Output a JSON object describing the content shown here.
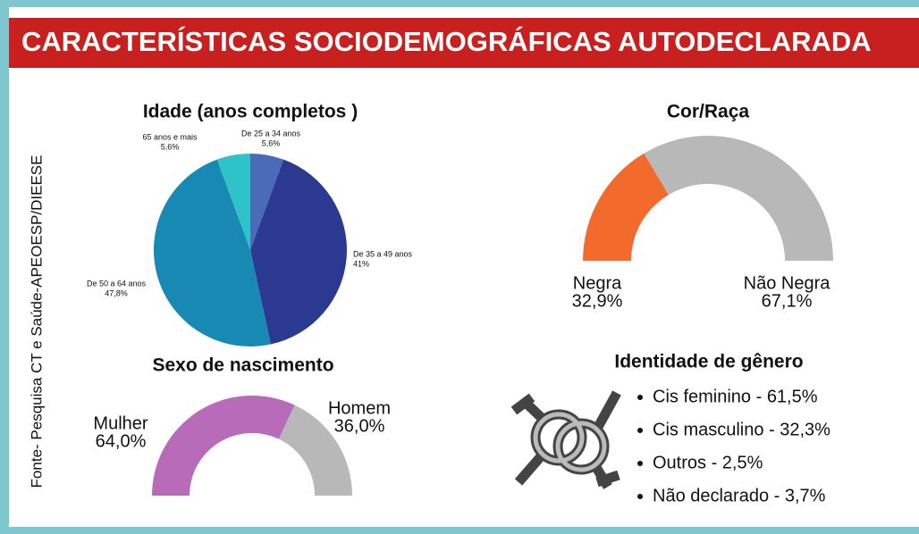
{
  "title": "CARACTERÍSTICAS SOCIODEMOGRÁFICAS AUTODECLARADA",
  "source": "Fonte- Pesquisa CT e Saúde-APEOESP/DIEESE",
  "chart_data": [
    {
      "type": "pie",
      "title": "Idade (anos completos )",
      "categories": [
        "De 25 a 34 anos",
        "De 35 a 49 anos",
        "De 50 a 64 anos",
        "65 anos e mais"
      ],
      "values": [
        5.6,
        41,
        47.8,
        5.6
      ],
      "value_labels": [
        "5,6%",
        "41%",
        "47,8%",
        "5,6%"
      ],
      "colors": [
        "#4a6cb8",
        "#2c3990",
        "#1889b2",
        "#2ec3c9"
      ]
    },
    {
      "type": "semidonut",
      "title": "Cor/Raça",
      "categories": [
        "Negra",
        "Não Negra"
      ],
      "values": [
        32.9,
        67.1
      ],
      "value_labels": [
        "32,9%",
        "67,1%"
      ],
      "colors": [
        "#f26b2c",
        "#b8b8b8"
      ]
    },
    {
      "type": "semidonut",
      "title": "Sexo de nascimento",
      "categories": [
        "Mulher",
        "Homem"
      ],
      "values": [
        64.0,
        36.0
      ],
      "value_labels": [
        "64,0%",
        "36,0%"
      ],
      "colors": [
        "#b86bb9",
        "#b8b8b8"
      ]
    }
  ],
  "gender_identity": {
    "title": "Identidade de gênero",
    "items": [
      "Cis feminino -  61,5%",
      "Cis masculino -  32,3%",
      "Outros -  2,5%",
      "Não declarado -  3,7%"
    ]
  }
}
